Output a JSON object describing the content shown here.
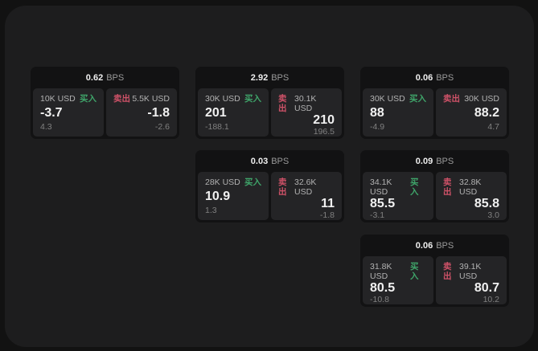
{
  "labels": {
    "bps_unit": "BPS",
    "buy": "买入",
    "sell": "卖出"
  },
  "colors": {
    "buy": "#3fa56a",
    "sell": "#cf5268",
    "panel_bg": "#1d1d1e",
    "card_bg": "#121213",
    "side_bg": "#242426"
  },
  "cards": [
    {
      "col": 0,
      "row": 0,
      "bps": "0.62",
      "buy": {
        "amount": "10K USD",
        "value": "-3.7",
        "delta": "4.3"
      },
      "sell": {
        "amount": "5.5K USD",
        "value": "-1.8",
        "delta": "-2.6"
      }
    },
    {
      "col": 1,
      "row": 0,
      "bps": "2.92",
      "buy": {
        "amount": "30K USD",
        "value": "201",
        "delta": "-188.1"
      },
      "sell": {
        "amount": "30.1K USD",
        "value": "210",
        "delta": "196.5"
      }
    },
    {
      "col": 2,
      "row": 0,
      "bps": "0.06",
      "buy": {
        "amount": "30K USD",
        "value": "88",
        "delta": "-4.9"
      },
      "sell": {
        "amount": "30K USD",
        "value": "88.2",
        "delta": "4.7"
      }
    },
    {
      "col": 1,
      "row": 1,
      "bps": "0.03",
      "buy": {
        "amount": "28K USD",
        "value": "10.9",
        "delta": "1.3"
      },
      "sell": {
        "amount": "32.6K USD",
        "value": "11",
        "delta": "-1.8"
      }
    },
    {
      "col": 2,
      "row": 1,
      "bps": "0.09",
      "buy": {
        "amount": "34.1K USD",
        "value": "85.5",
        "delta": "-3.1"
      },
      "sell": {
        "amount": "32.8K USD",
        "value": "85.8",
        "delta": "3.0"
      }
    },
    {
      "col": 2,
      "row": 2,
      "bps": "0.06",
      "buy": {
        "amount": "31.8K USD",
        "value": "80.5",
        "delta": "-10.8"
      },
      "sell": {
        "amount": "39.1K USD",
        "value": "80.7",
        "delta": "10.2"
      }
    }
  ]
}
